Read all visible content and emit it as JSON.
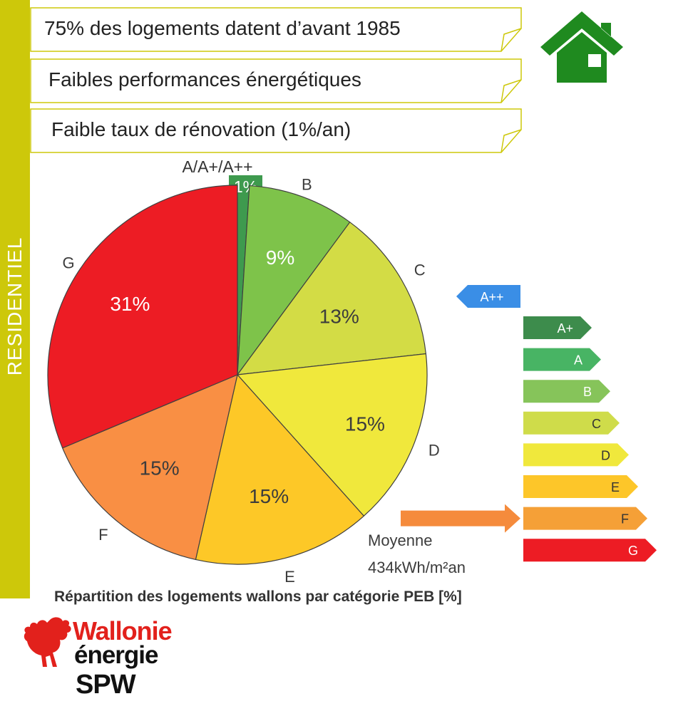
{
  "sidebar": {
    "label": "RESIDENTIEL"
  },
  "banners": [
    "75% des logements datent d’avant 1985",
    "Faibles performances énergétiques",
    "Faible taux de rénovation (1%/an)"
  ],
  "colors": {
    "sidebar": "#cdc80a",
    "house": "#1f8a1f",
    "arrow": "#f58b3c"
  },
  "icons": {
    "house": "house-icon",
    "logo": "rooster-logo"
  },
  "chart_data": {
    "type": "pie",
    "title": "Répartition des logements wallons par catégorie PEB [%]",
    "slices": [
      {
        "name": "A/A+/A++",
        "value": 1,
        "label": "1%",
        "color": "#3e9a4e"
      },
      {
        "name": "B",
        "value": 9,
        "label": "9%",
        "color": "#7ec34a"
      },
      {
        "name": "C",
        "value": 13,
        "label": "13%",
        "color": "#d3dc45"
      },
      {
        "name": "D",
        "value": 15,
        "label": "15%",
        "color": "#f0e83c"
      },
      {
        "name": "E",
        "value": 15,
        "label": "15%",
        "color": "#fdc827"
      },
      {
        "name": "F",
        "value": 15,
        "label": "15%",
        "color": "#f98f44"
      },
      {
        "name": "G",
        "value": 31,
        "label": "31%",
        "color": "#ed1c24"
      }
    ],
    "peb_scale": [
      {
        "name": "A++",
        "color": "#3a8ee6"
      },
      {
        "name": "A+",
        "color": "#3d8c4c"
      },
      {
        "name": "A",
        "color": "#48b464"
      },
      {
        "name": "B",
        "color": "#86c45a"
      },
      {
        "name": "C",
        "color": "#cfdc4a"
      },
      {
        "name": "D",
        "color": "#f0e83c"
      },
      {
        "name": "E",
        "color": "#fdc629"
      },
      {
        "name": "F",
        "color": "#f5a037"
      },
      {
        "name": "G",
        "color": "#ed1c24"
      }
    ],
    "average": {
      "label": "Moyenne",
      "value": "434kWh/m²an",
      "category": "F"
    }
  },
  "logo": {
    "line1": "Wallonie",
    "line2": "énergie",
    "line3": "SPW"
  }
}
